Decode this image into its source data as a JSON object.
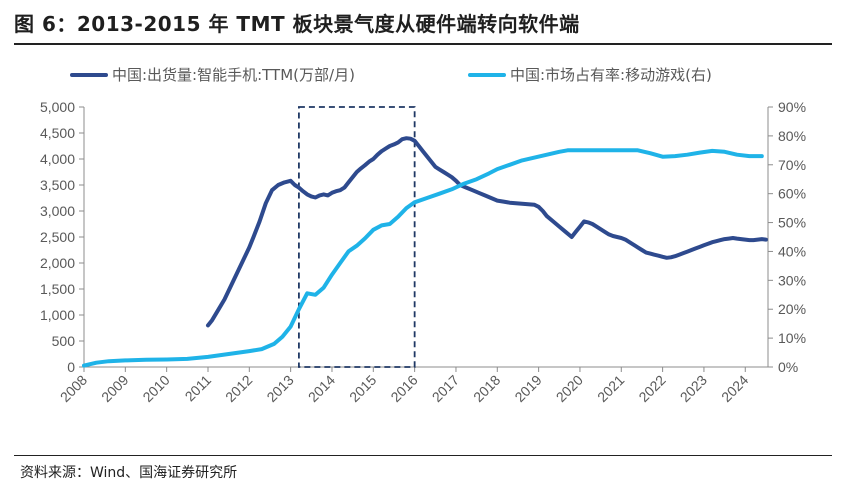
{
  "header": {
    "title": "图 6：2013-2015 年 TMT 板块景气度从硬件端转向软件端"
  },
  "footer": {
    "source": "资料来源：Wind、国海证券研究所"
  },
  "colors": {
    "shipments": "#2E4A8E",
    "share": "#1FB3E8",
    "highlight_box": "#1F3864",
    "axis": "#8c8c8c"
  },
  "chart_data": {
    "type": "line",
    "title": "",
    "x_tick_labels": [
      "2008",
      "2009",
      "2010",
      "2011",
      "2012",
      "2013",
      "2014",
      "2015",
      "2016",
      "2017",
      "2018",
      "2019",
      "2020",
      "2021",
      "2022",
      "2023",
      "2024"
    ],
    "xlim": [
      2008.0,
      2024.55
    ],
    "y_left": {
      "lim": [
        0,
        5000
      ],
      "ticks": [
        "0",
        "500",
        "1,000",
        "1,500",
        "2,000",
        "2,500",
        "3,000",
        "3,500",
        "4,000",
        "4,500",
        "5,000"
      ]
    },
    "y_right": {
      "lim": [
        0,
        90
      ],
      "ticks": [
        "0%",
        "10%",
        "20%",
        "30%",
        "40%",
        "50%",
        "60%",
        "70%",
        "80%",
        "90%"
      ]
    },
    "highlight_range": [
      2013.2,
      2016.0
    ],
    "legend": {
      "position": "top"
    },
    "series": [
      {
        "name": "中国:出货量:智能手机:TTM(万部/月)",
        "axis": "left",
        "x": [
          2011.0,
          2011.1,
          2011.25,
          2011.4,
          2011.55,
          2011.7,
          2011.85,
          2012.0,
          2012.1,
          2012.25,
          2012.4,
          2012.55,
          2012.7,
          2012.85,
          2013.0,
          2013.1,
          2013.2,
          2013.3,
          2013.4,
          2013.5,
          2013.6,
          2013.7,
          2013.8,
          2013.9,
          2014.0,
          2014.1,
          2014.2,
          2014.3,
          2014.4,
          2014.5,
          2014.6,
          2014.7,
          2014.8,
          2014.9,
          2015.0,
          2015.1,
          2015.2,
          2015.3,
          2015.4,
          2015.5,
          2015.6,
          2015.7,
          2015.8,
          2015.9,
          2016.0,
          2016.1,
          2016.2,
          2016.3,
          2016.4,
          2016.5,
          2016.6,
          2016.7,
          2016.8,
          2016.9,
          2017.0,
          2017.1,
          2017.25,
          2017.4,
          2017.55,
          2017.7,
          2017.85,
          2018.0,
          2018.15,
          2018.3,
          2018.45,
          2018.6,
          2018.75,
          2018.9,
          2019.0,
          2019.1,
          2019.2,
          2019.35,
          2019.5,
          2019.65,
          2019.8,
          2019.9,
          2020.0,
          2020.1,
          2020.2,
          2020.3,
          2020.4,
          2020.5,
          2020.6,
          2020.7,
          2020.8,
          2020.9,
          2021.0,
          2021.1,
          2021.2,
          2021.3,
          2021.4,
          2021.5,
          2021.6,
          2021.7,
          2021.8,
          2021.9,
          2022.0,
          2022.1,
          2022.2,
          2022.3,
          2022.4,
          2022.5,
          2022.6,
          2022.7,
          2022.8,
          2022.9,
          2023.0,
          2023.1,
          2023.2,
          2023.3,
          2023.4,
          2023.5,
          2023.6,
          2023.7,
          2023.8,
          2023.9,
          2024.0,
          2024.1,
          2024.2,
          2024.3,
          2024.4,
          2024.5
        ],
        "values": [
          800,
          900,
          1100,
          1300,
          1550,
          1800,
          2050,
          2300,
          2500,
          2800,
          3150,
          3400,
          3500,
          3550,
          3580,
          3500,
          3450,
          3380,
          3320,
          3280,
          3260,
          3300,
          3320,
          3300,
          3350,
          3380,
          3400,
          3450,
          3550,
          3650,
          3750,
          3820,
          3880,
          3950,
          4000,
          4080,
          4150,
          4200,
          4250,
          4280,
          4320,
          4380,
          4400,
          4390,
          4350,
          4250,
          4150,
          4050,
          3950,
          3850,
          3800,
          3750,
          3700,
          3650,
          3580,
          3500,
          3450,
          3400,
          3350,
          3300,
          3250,
          3200,
          3180,
          3160,
          3150,
          3140,
          3130,
          3120,
          3080,
          3000,
          2900,
          2800,
          2700,
          2600,
          2500,
          2600,
          2700,
          2800,
          2780,
          2750,
          2700,
          2650,
          2600,
          2550,
          2520,
          2500,
          2480,
          2450,
          2400,
          2350,
          2300,
          2250,
          2200,
          2180,
          2160,
          2140,
          2120,
          2100,
          2110,
          2130,
          2160,
          2190,
          2220,
          2250,
          2280,
          2310,
          2340,
          2370,
          2400,
          2420,
          2440,
          2460,
          2470,
          2480,
          2470,
          2460,
          2450,
          2440,
          2440,
          2450,
          2460,
          2450
        ]
      },
      {
        "name": "中国:市场占有率:移动游戏(右)",
        "axis": "right",
        "x": [
          2008.0,
          2008.3,
          2008.6,
          2009.0,
          2009.5,
          2010.0,
          2010.5,
          2011.0,
          2011.5,
          2012.0,
          2012.3,
          2012.6,
          2012.8,
          2013.0,
          2013.2,
          2013.4,
          2013.6,
          2013.8,
          2014.0,
          2014.2,
          2014.4,
          2014.6,
          2014.8,
          2015.0,
          2015.2,
          2015.4,
          2015.6,
          2015.8,
          2016.0,
          2016.3,
          2016.6,
          2016.9,
          2017.2,
          2017.5,
          2017.8,
          2018.0,
          2018.3,
          2018.6,
          2018.9,
          2019.2,
          2019.5,
          2019.7,
          2019.9,
          2020.2,
          2020.5,
          2020.8,
          2021.1,
          2021.4,
          2021.7,
          2022.0,
          2022.3,
          2022.6,
          2022.9,
          2023.2,
          2023.5,
          2023.8,
          2024.1,
          2024.4
        ],
        "values": [
          0.5,
          1.5,
          2.0,
          2.3,
          2.5,
          2.6,
          2.8,
          3.5,
          4.5,
          5.5,
          6.2,
          8.0,
          10.5,
          14.0,
          20.0,
          25.5,
          25.0,
          27.5,
          32.0,
          36.0,
          40.0,
          42.0,
          44.5,
          47.5,
          49.0,
          49.5,
          52.0,
          55.0,
          57.0,
          58.5,
          60.0,
          61.5,
          63.5,
          65.0,
          67.0,
          68.5,
          70.0,
          71.5,
          72.5,
          73.5,
          74.5,
          75.0,
          75.0,
          75.0,
          75.0,
          75.0,
          75.0,
          75.0,
          74.0,
          72.8,
          73.0,
          73.5,
          74.2,
          74.8,
          74.5,
          73.5,
          73.0,
          73.0
        ]
      }
    ]
  }
}
